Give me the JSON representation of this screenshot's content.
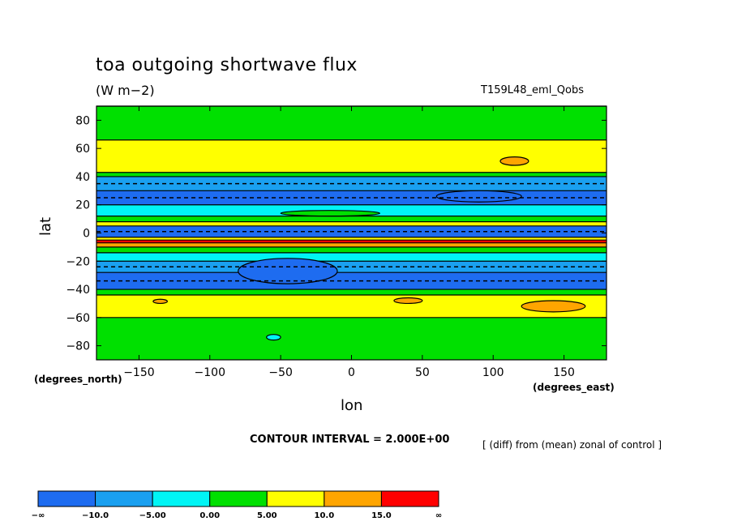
{
  "chart_data": {
    "type": "heatmap",
    "title": "toa outgoing shortwave flux",
    "units": "(W m−2)",
    "experiment": "T159L48_eml_Qobs",
    "xlabel": "lon",
    "ylabel": "lat",
    "xlabel_units": "(degrees_east)",
    "ylabel_units": "(degrees_north)",
    "xlim": [
      -180,
      180
    ],
    "ylim": [
      -90,
      90
    ],
    "x_ticks": [
      "−150",
      "−100",
      "−50",
      "0",
      "50",
      "100",
      "150"
    ],
    "x_tick_values": [
      -150,
      -100,
      -50,
      0,
      50,
      100,
      150
    ],
    "y_ticks": [
      "80",
      "60",
      "40",
      "20",
      "0",
      "−20",
      "−40",
      "−60",
      "−80"
    ],
    "y_tick_values": [
      80,
      60,
      40,
      20,
      0,
      -20,
      -40,
      -60,
      -80
    ],
    "contour_interval_text": "CONTOUR INTERVAL = 2.000E+00",
    "note": "[ (diff) from (mean) zonal of control ]",
    "colorbar": {
      "labels": [
        "−∞",
        "−10.0",
        "−5.00",
        "0.00",
        "5.00",
        "10.0",
        "15.0",
        "∞"
      ],
      "colors": [
        "#1e6cf0",
        "#1aa0f0",
        "#00f5f5",
        "#00e000",
        "#ffff00",
        "#ffa500",
        "#ff0000"
      ]
    },
    "zonal_bands": [
      {
        "lat_min": 66,
        "lat_max": 90,
        "class": 3
      },
      {
        "lat_min": 43,
        "lat_max": 66,
        "class": 4
      },
      {
        "lat_min": 40,
        "lat_max": 43,
        "class": 3
      },
      {
        "lat_min": 30,
        "lat_max": 40,
        "class": 1
      },
      {
        "lat_min": 20,
        "lat_max": 30,
        "class": 0
      },
      {
        "lat_min": 12,
        "lat_max": 20,
        "class": 2
      },
      {
        "lat_min": 8,
        "lat_max": 12,
        "class": 3
      },
      {
        "lat_min": 5,
        "lat_max": 8,
        "class": 4
      },
      {
        "lat_min": -3,
        "lat_max": 5,
        "class": 0
      },
      {
        "lat_min": -5,
        "lat_max": -3,
        "class": 4
      },
      {
        "lat_min": -7,
        "lat_max": -5,
        "class": 6
      },
      {
        "lat_min": -10,
        "lat_max": -7,
        "class": 5
      },
      {
        "lat_min": -14,
        "lat_max": -10,
        "class": 3
      },
      {
        "lat_min": -20,
        "lat_max": -14,
        "class": 2
      },
      {
        "lat_min": -28,
        "lat_max": -20,
        "class": 1
      },
      {
        "lat_min": -40,
        "lat_max": -28,
        "class": 0
      },
      {
        "lat_min": -44,
        "lat_max": -40,
        "class": 3
      },
      {
        "lat_min": -60,
        "lat_max": -44,
        "class": 4
      },
      {
        "lat_min": -90,
        "lat_max": -60,
        "class": 3
      }
    ],
    "patches": [
      {
        "lon_min": 105,
        "lon_max": 125,
        "lat_min": 48,
        "lat_max": 54,
        "class": 5
      },
      {
        "lon_min": 120,
        "lon_max": 165,
        "lat_min": -56,
        "lat_max": -48,
        "class": 5
      },
      {
        "lon_min": -140,
        "lon_max": -130,
        "lat_min": -50,
        "lat_max": -47,
        "class": 5
      },
      {
        "lon_min": 30,
        "lon_max": 50,
        "lat_min": -50,
        "lat_max": -46,
        "class": 5
      },
      {
        "lon_min": -80,
        "lon_max": -10,
        "lat_min": -36,
        "lat_max": -18,
        "class": 0
      },
      {
        "lon_min": 60,
        "lon_max": 120,
        "lat_min": 22,
        "lat_max": 30,
        "class": 0
      },
      {
        "lon_min": -60,
        "lon_max": -50,
        "lat_min": -76,
        "lat_max": -72,
        "class": 2
      },
      {
        "lon_min": -50,
        "lon_max": 20,
        "lat_min": 12,
        "lat_max": 16,
        "class": 3
      }
    ]
  }
}
